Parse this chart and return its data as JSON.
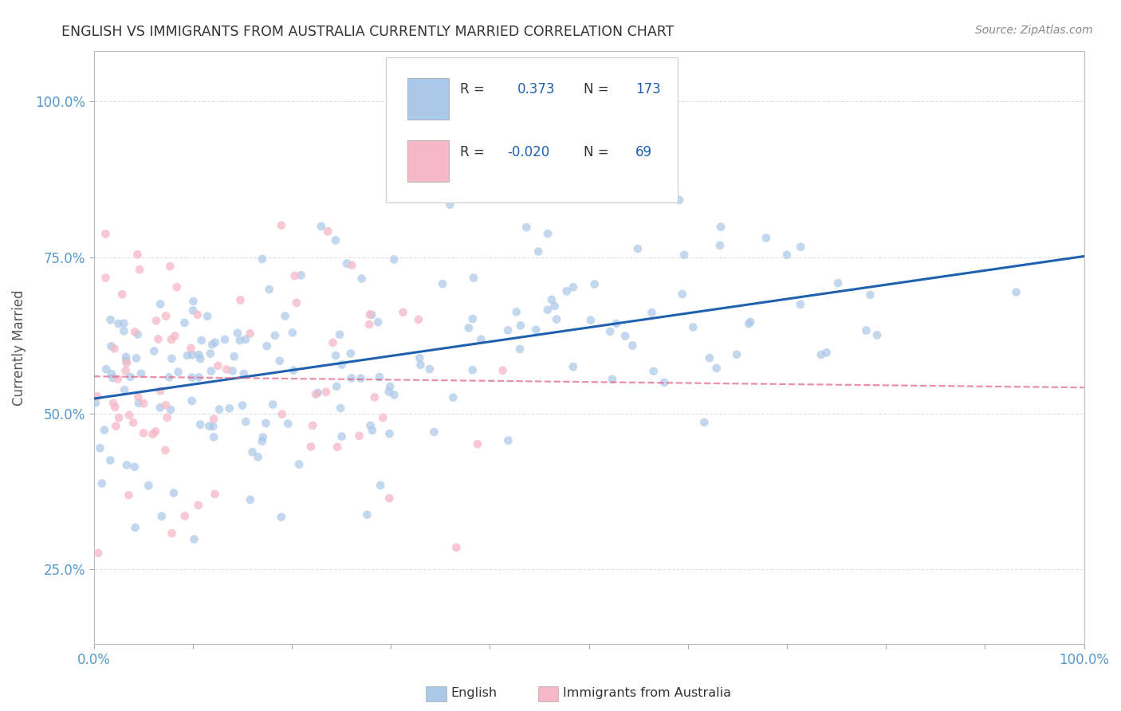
{
  "title": "ENGLISH VS IMMIGRANTS FROM AUSTRALIA CURRENTLY MARRIED CORRELATION CHART",
  "source": "Source: ZipAtlas.com",
  "ylabel": "Currently Married",
  "legend_bottom": [
    "English",
    "Immigrants from Australia"
  ],
  "blue_r": "0.373",
  "blue_n": "173",
  "pink_r": "-0.020",
  "pink_n": "69",
  "blue_color": "#aac8e8",
  "pink_color": "#f4b8c8",
  "blue_line_color": "#2060b0",
  "pink_line_color": "#e06080",
  "grid_color": "#dddddd",
  "background_color": "#ffffff",
  "title_color": "#333333",
  "axis_label_color": "#5599cc",
  "legend_text_color": "#333333",
  "legend_value_color": "#2060b0",
  "blue_seed": 12,
  "pink_seed": 99,
  "blue_n_int": 173,
  "pink_n_int": 69
}
